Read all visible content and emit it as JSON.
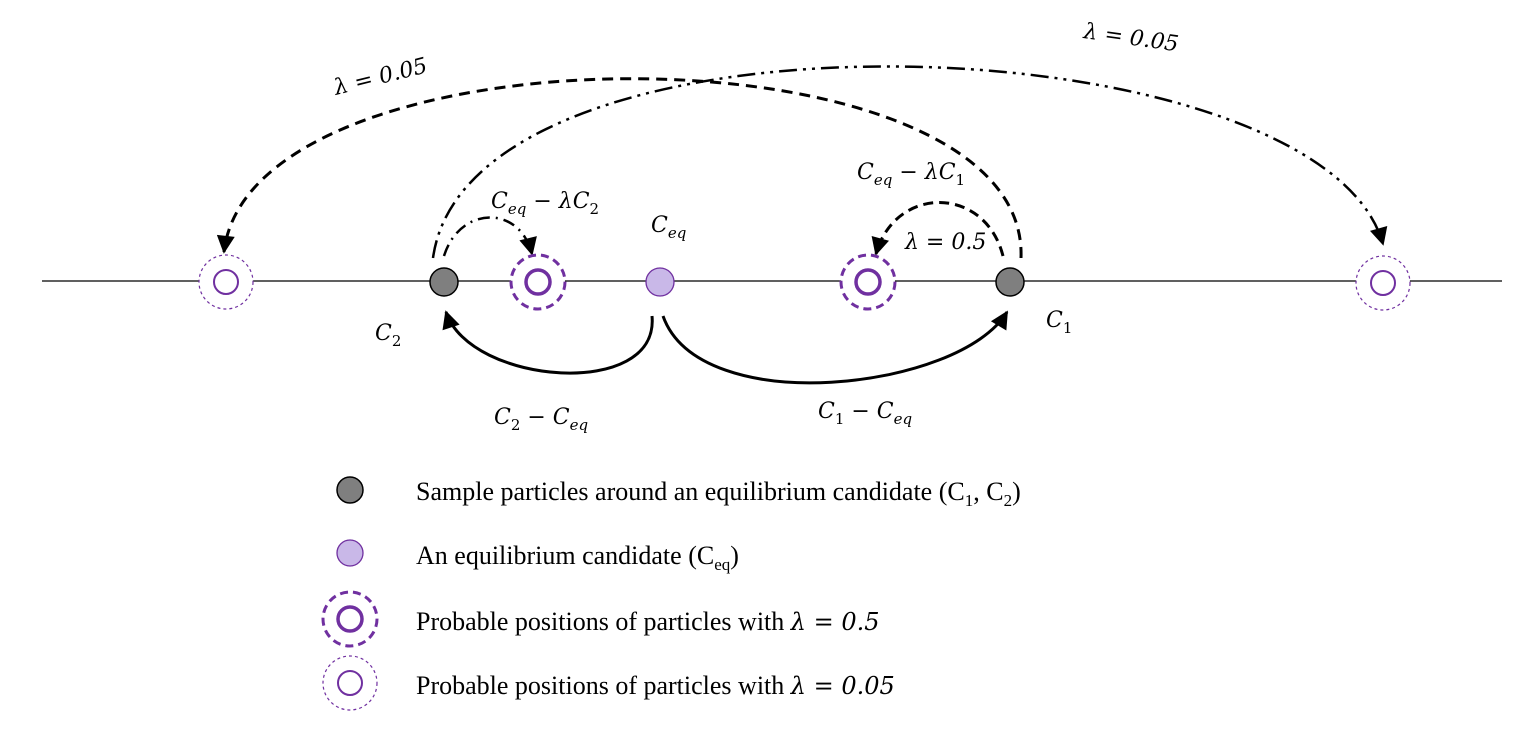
{
  "labels": {
    "c1": "C",
    "c1_sub": "1",
    "c2": "C",
    "c2_sub": "2",
    "ceq": "C",
    "ceq_sub": "eq",
    "ceq_minus_lc2": {
      "a": "C",
      "a_sub": "eq",
      "op": " − λC",
      "b_sub": "2"
    },
    "ceq_minus_lc1": {
      "a": "C",
      "a_sub": "eq",
      "op": " − λC",
      "b_sub": "1"
    },
    "c2_minus_ceq": {
      "a": "C",
      "a_sub": "2",
      "op": " − C",
      "b_sub": "eq"
    },
    "c1_minus_ceq": {
      "a": "C",
      "a_sub": "1",
      "op": " − C",
      "b_sub": "eq"
    },
    "lambda_far_left": "λ = 0.05",
    "lambda_far_right": "λ = 0.05",
    "lambda_near": "λ = 0.5"
  },
  "legend": [
    {
      "marker": "sample-particle",
      "text": "Sample particles around an equilibrium candidate (C",
      "s1": "1",
      "mid": ", C",
      "s2": "2",
      "end": ")"
    },
    {
      "marker": "equilibrium-candidate",
      "text": "An equilibrium candidate (C",
      "s1": "eq",
      "end": ")"
    },
    {
      "marker": "probable-position-lambda-0-5",
      "text": "Probable positions of particles with ",
      "math": "λ = 0.5"
    },
    {
      "marker": "probable-position-lambda-0-05",
      "text": "Probable positions of particles with ",
      "math": "λ = 0.05"
    }
  ],
  "colors": {
    "sample_fill": "#7f7f7f",
    "candidate_fill": "#c9b8e8",
    "purple": "#7030a0"
  }
}
